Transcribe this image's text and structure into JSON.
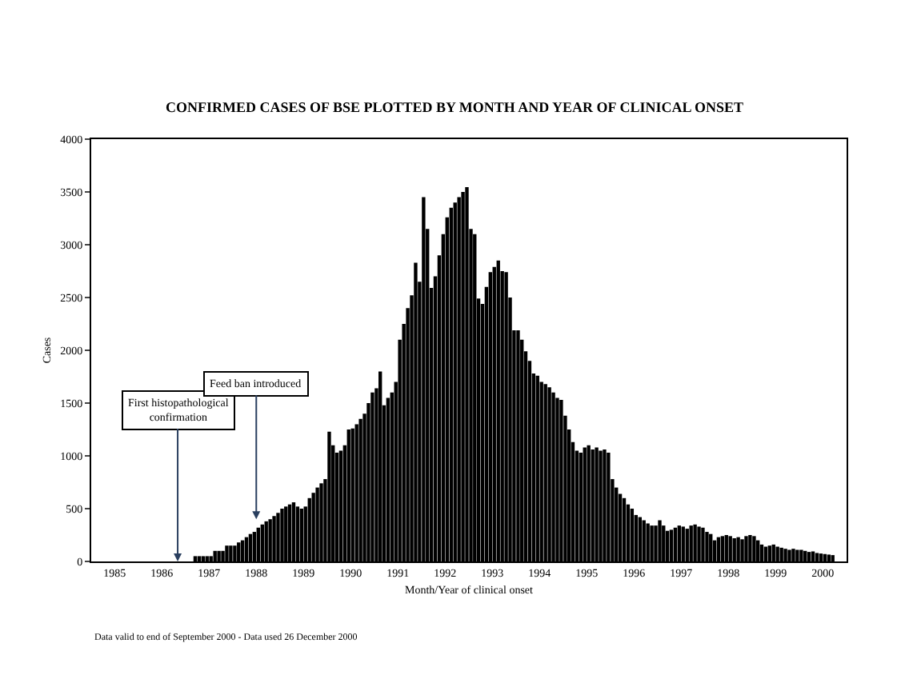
{
  "chart_data": {
    "type": "bar",
    "title": "CONFIRMED CASES OF BSE PLOTTED BY MONTH AND YEAR OF CLINICAL ONSET",
    "xlabel": "Month/Year of clinical onset",
    "ylabel": "Cases",
    "x": [
      "1985-01",
      "1985-02",
      "1985-03",
      "1985-04",
      "1985-05",
      "1985-06",
      "1985-07",
      "1985-08",
      "1985-09",
      "1985-10",
      "1985-11",
      "1985-12",
      "1986-01",
      "1986-02",
      "1986-03",
      "1986-04",
      "1986-05",
      "1986-06",
      "1986-07",
      "1986-08",
      "1986-09",
      "1986-10",
      "1986-11",
      "1986-12",
      "1987-01",
      "1987-02",
      "1987-03",
      "1987-04",
      "1987-05",
      "1987-06",
      "1987-07",
      "1987-08",
      "1987-09",
      "1987-10",
      "1987-11",
      "1987-12",
      "1988-01",
      "1988-02",
      "1988-03",
      "1988-04",
      "1988-05",
      "1988-06",
      "1988-07",
      "1988-08",
      "1988-09",
      "1988-10",
      "1988-11",
      "1988-12",
      "1989-01",
      "1989-02",
      "1989-03",
      "1989-04",
      "1989-05",
      "1989-06",
      "1989-07",
      "1989-08",
      "1989-09",
      "1989-10",
      "1989-11",
      "1989-12",
      "1990-01",
      "1990-02",
      "1990-03",
      "1990-04",
      "1990-05",
      "1990-06",
      "1990-07",
      "1990-08",
      "1990-09",
      "1990-10",
      "1990-11",
      "1990-12",
      "1991-01",
      "1991-02",
      "1991-03",
      "1991-04",
      "1991-05",
      "1991-06",
      "1991-07",
      "1991-08",
      "1991-09",
      "1991-10",
      "1991-11",
      "1991-12",
      "1992-01",
      "1992-02",
      "1992-03",
      "1992-04",
      "1992-05",
      "1992-06",
      "1992-07",
      "1992-08",
      "1992-09",
      "1992-10",
      "1992-11",
      "1992-12",
      "1993-01",
      "1993-02",
      "1993-03",
      "1993-04",
      "1993-05",
      "1993-06",
      "1993-07",
      "1993-08",
      "1993-09",
      "1993-10",
      "1993-11",
      "1993-12",
      "1994-01",
      "1994-02",
      "1994-03",
      "1994-04",
      "1994-05",
      "1994-06",
      "1994-07",
      "1994-08",
      "1994-09",
      "1994-10",
      "1994-11",
      "1994-12",
      "1995-01",
      "1995-02",
      "1995-03",
      "1995-04",
      "1995-05",
      "1995-06",
      "1995-07",
      "1995-08",
      "1995-09",
      "1995-10",
      "1995-11",
      "1995-12",
      "1996-01",
      "1996-02",
      "1996-03",
      "1996-04",
      "1996-05",
      "1996-06",
      "1996-07",
      "1996-08",
      "1996-09",
      "1996-10",
      "1996-11",
      "1996-12",
      "1997-01",
      "1997-02",
      "1997-03",
      "1997-04",
      "1997-05",
      "1997-06",
      "1997-07",
      "1997-08",
      "1997-09",
      "1997-10",
      "1997-11",
      "1997-12",
      "1998-01",
      "1998-02",
      "1998-03",
      "1998-04",
      "1998-05",
      "1998-06",
      "1998-07",
      "1998-08",
      "1998-09",
      "1998-10",
      "1998-11",
      "1998-12",
      "1999-01",
      "1999-02",
      "1999-03",
      "1999-04",
      "1999-05",
      "1999-06",
      "1999-07",
      "1999-08",
      "1999-09",
      "1999-10",
      "1999-11",
      "1999-12",
      "2000-01",
      "2000-02",
      "2000-03",
      "2000-04",
      "2000-05",
      "2000-06",
      "2000-07",
      "2000-08",
      "2000-09"
    ],
    "series": [
      {
        "color": "#000000",
        "values": [
          0,
          0,
          0,
          0,
          0,
          0,
          0,
          0,
          0,
          0,
          0,
          0,
          0,
          0,
          0,
          0,
          0,
          0,
          0,
          0,
          0,
          0,
          0,
          0,
          0,
          0,
          50,
          50,
          50,
          50,
          50,
          100,
          100,
          100,
          150,
          150,
          150,
          180,
          200,
          230,
          260,
          280,
          320,
          350,
          380,
          400,
          430,
          460,
          500,
          520,
          540,
          560,
          520,
          500,
          520,
          600,
          650,
          700,
          740,
          780,
          1230,
          1100,
          1030,
          1050,
          1100,
          1250,
          1260,
          1300,
          1350,
          1400,
          1500,
          1600,
          1640,
          1800,
          1480,
          1550,
          1600,
          1700,
          2100,
          2250,
          2400,
          2520,
          2830,
          2650,
          3450,
          3150,
          2590,
          2700,
          2900,
          3100,
          3260,
          3350,
          3400,
          3450,
          3500,
          3545,
          3150,
          3100,
          2490,
          2440,
          2600,
          2740,
          2790,
          2850,
          2750,
          2740,
          2500,
          2190,
          2190,
          2100,
          1990,
          1900,
          1780,
          1760,
          1700,
          1680,
          1650,
          1600,
          1550,
          1530,
          1380,
          1250,
          1130,
          1050,
          1030,
          1080,
          1100,
          1060,
          1080,
          1050,
          1060,
          1030,
          780,
          700,
          640,
          600,
          540,
          500,
          440,
          420,
          390,
          360,
          340,
          340,
          390,
          340,
          290,
          300,
          320,
          340,
          330,
          310,
          340,
          350,
          330,
          320,
          280,
          260,
          200,
          230,
          240,
          250,
          240,
          220,
          230,
          210,
          240,
          250,
          240,
          200,
          160,
          140,
          150,
          160,
          140,
          130,
          120,
          110,
          120,
          110,
          110,
          100,
          90,
          95,
          80,
          75,
          70,
          65,
          60
        ]
      }
    ],
    "xlim": [
      "1985-01-01",
      "2001-01-01"
    ],
    "xticks": [
      {
        "value": "1985-07-01",
        "label": "1985"
      },
      {
        "value": "1986-07-01",
        "label": "1986"
      },
      {
        "value": "1987-07-01",
        "label": "1987"
      },
      {
        "value": "1988-07-01",
        "label": "1988"
      },
      {
        "value": "1989-07-01",
        "label": "1989"
      },
      {
        "value": "1990-07-01",
        "label": "1990"
      },
      {
        "value": "1991-07-01",
        "label": "1991"
      },
      {
        "value": "1992-07-01",
        "label": "1992"
      },
      {
        "value": "1993-07-01",
        "label": "1993"
      },
      {
        "value": "1994-07-01",
        "label": "1994"
      },
      {
        "value": "1995-07-01",
        "label": "1995"
      },
      {
        "value": "1996-07-01",
        "label": "1996"
      },
      {
        "value": "1997-07-01",
        "label": "1997"
      },
      {
        "value": "1998-07-01",
        "label": "1998"
      },
      {
        "value": "1999-07-01",
        "label": "1999"
      },
      {
        "value": "2000-07-01",
        "label": "2000"
      }
    ],
    "ylim": [
      0,
      4000
    ],
    "yticks": [
      0,
      500,
      1000,
      1500,
      2000,
      2500,
      3000,
      3500,
      4000
    ],
    "annotations": [
      {
        "text": "First histopathological\nconfirmation",
        "x": "1986-11",
        "y": 0
      },
      {
        "text": "Feed ban introduced",
        "x": "1988-07",
        "y": 400
      },
      "Data valid to end of September 2000 - Data used 26 December 2000"
    ]
  }
}
